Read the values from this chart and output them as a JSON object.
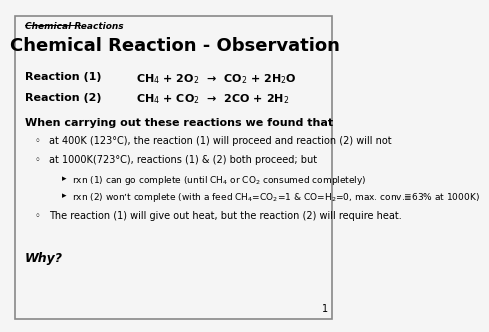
{
  "bg_color": "#f5f5f5",
  "border_color": "#888888",
  "header_text": "Chemical Reactions",
  "title": "Chemical Reaction - Observation",
  "reaction1_label": "Reaction (1)",
  "reaction1_formula": "CH$_4$ + 2O$_2$  →  CO$_2$ + 2H$_2$O",
  "reaction2_label": "Reaction (2)",
  "reaction2_formula": "CH$_4$ + CO$_2$  →  2CO + 2H$_2$",
  "section_heading": "When carrying out these reactions we found that",
  "bullet1": "at 400K (123°C), the reaction (1) will proceed and reaction (2) will not",
  "bullet2": "at 1000K(723°C), reactions (1) & (2) both proceed; but",
  "sub_bullet1": "rxn (1) can go complete (until CH$_4$ or CO$_2$ consumed completely)",
  "sub_bullet2": "rxn (2) won’t complete (with a feed CH$_4$=CO$_2$=1 & CO=H$_2$=0, max. conv.≣63% at 1000K)",
  "bullet3": "The reaction (1) will give out heat, but the reaction (2) will require heat.",
  "why_text": "Why?",
  "page_number": "1",
  "bullet_sym": "◦",
  "arrow_sym": "▸"
}
